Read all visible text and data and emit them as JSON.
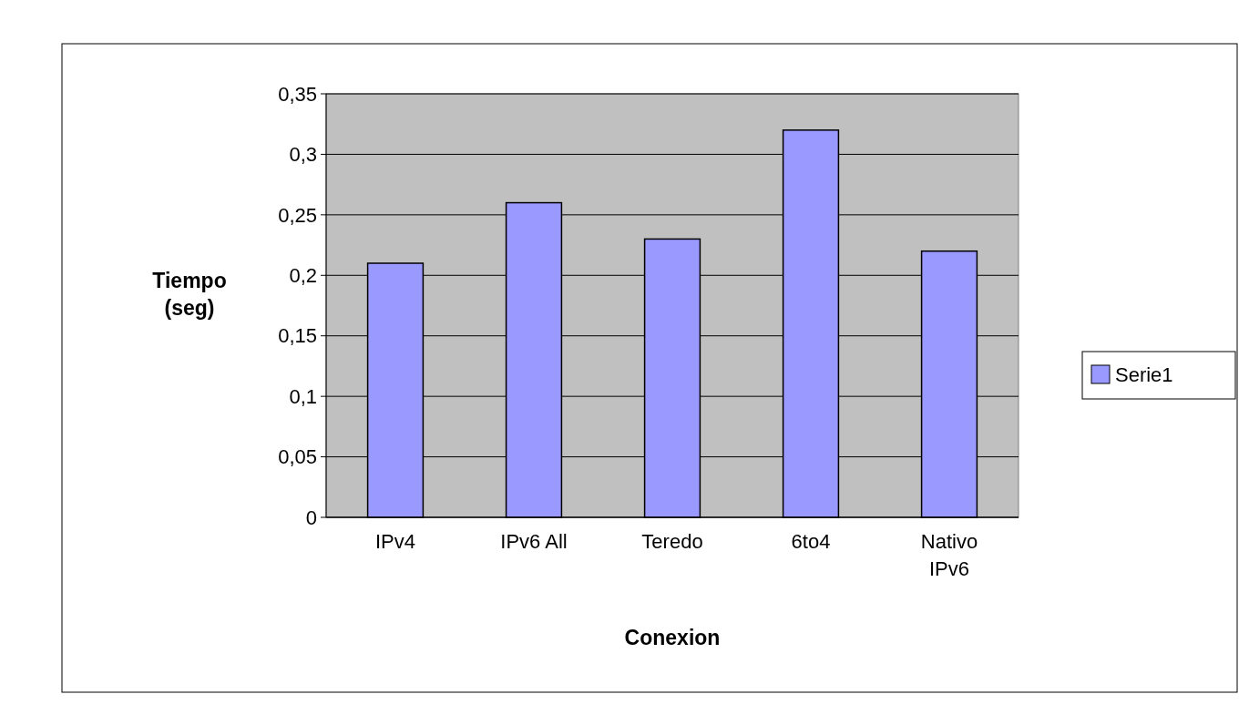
{
  "chart_data": {
    "type": "bar",
    "xlabel": "Conexion",
    "ylabel": "Tiempo (seg)",
    "categories": [
      "IPv4",
      "IPv6 All",
      "Teredo",
      "6to4",
      "Nativo IPv6"
    ],
    "series": [
      {
        "name": "Serie1",
        "color": "#9999ff",
        "values": [
          0.21,
          0.26,
          0.23,
          0.32,
          0.22
        ]
      }
    ],
    "ylim": [
      0,
      0.35
    ],
    "yticks": [
      {
        "value": 0,
        "label": "0"
      },
      {
        "value": 0.05,
        "label": "0,05"
      },
      {
        "value": 0.1,
        "label": "0,1"
      },
      {
        "value": 0.15,
        "label": "0,15"
      },
      {
        "value": 0.2,
        "label": "0,2"
      },
      {
        "value": 0.25,
        "label": "0,25"
      },
      {
        "value": 0.3,
        "label": "0,3"
      },
      {
        "value": 0.35,
        "label": "0,35"
      }
    ],
    "grid": "y",
    "legend": "right"
  }
}
